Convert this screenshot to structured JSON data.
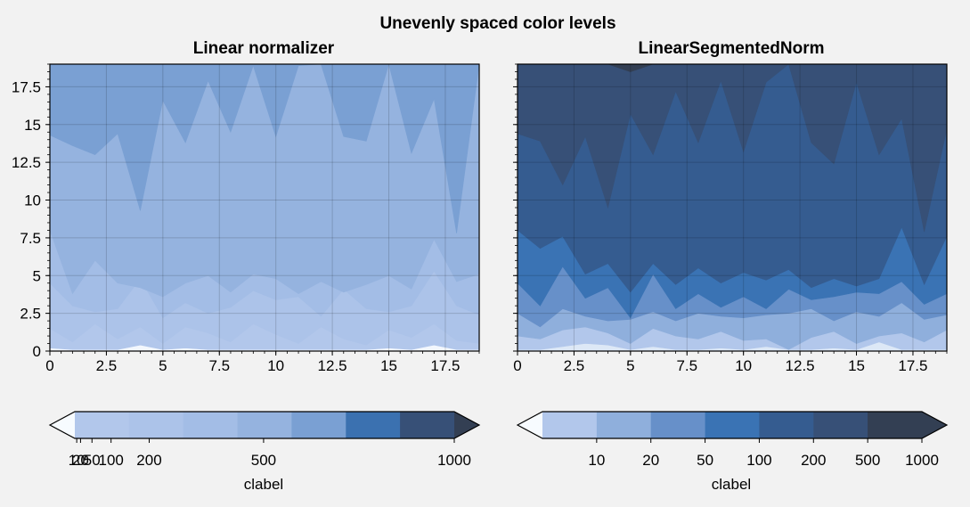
{
  "figure": {
    "suptitle": "Unevenly spaced color levels"
  },
  "chart_data": [
    {
      "type": "heatmap",
      "subtype": "filled-contour",
      "title": "Linear normalizer",
      "xlim": [
        0,
        19
      ],
      "ylim": [
        0,
        19
      ],
      "xticks": [
        "0",
        "2.5",
        "5",
        "7.5",
        "10",
        "12.5",
        "15",
        "17.5"
      ],
      "yticks": [
        "0",
        "2.5",
        "5",
        "7.5",
        "10",
        "12.5",
        "15",
        "17.5"
      ],
      "grid": true,
      "levels": [
        1,
        5,
        10,
        20,
        50,
        100,
        200,
        500,
        1000
      ],
      "normalizer": "linear",
      "colorbar": {
        "label": "clabel",
        "ticklabels": [
          "10",
          "20",
          "50",
          "100",
          "200",
          "500",
          "1000"
        ],
        "colors": [
          "#b2c7eb",
          "#acc3e9",
          "#a3bde6",
          "#95b3df",
          "#7aa0d3",
          "#3b71b0",
          "#375077"
        ],
        "extend": "both",
        "extend_low": "#f7fbff",
        "extend_high": "#333f53",
        "location": "bottom"
      },
      "bands": [
        "#f3f7fd",
        "#b2c7eb",
        "#acc3e9",
        "#a3bde6",
        "#95b3df",
        "#7aa0d3",
        "#3b71b0",
        "#375077"
      ],
      "boundaries": [
        [
          0.2,
          0.1,
          0.1,
          0.1,
          0.4,
          0.1,
          0.2,
          0.1,
          0.1,
          0.1,
          0.1,
          0.1,
          0.1,
          0.1,
          0.1,
          0.2,
          0.1,
          0.4,
          0.1,
          0.1
        ],
        [
          1.5,
          0.6,
          1.8,
          0.8,
          1.6,
          0.5,
          1.6,
          1.2,
          0.6,
          1.8,
          1.1,
          0.5,
          1.6,
          0.8,
          0.4,
          1.4,
          0.9,
          1.8,
          0.7,
          0.5
        ],
        [
          4.5,
          3.0,
          2.6,
          2.8,
          4.8,
          2.2,
          3.2,
          2.5,
          2.9,
          4.0,
          3.4,
          3.6,
          2.3,
          4.1,
          2.8,
          2.6,
          3.0,
          5.3,
          3.0,
          2.4
        ],
        [
          8.0,
          3.8,
          6.0,
          4.5,
          4.2,
          3.6,
          4.5,
          5.0,
          3.9,
          5.1,
          4.8,
          3.8,
          4.6,
          3.9,
          4.4,
          5.0,
          4.1,
          7.4,
          4.6,
          5.1
        ],
        [
          14.3,
          13.6,
          13.0,
          14.4,
          9.3,
          16.6,
          13.8,
          17.9,
          14.5,
          18.9,
          14.2,
          18.9,
          19,
          14.2,
          13.9,
          19,
          13.1,
          16.7,
          7.8,
          19
        ],
        [
          19,
          19,
          19,
          19,
          19,
          19,
          19,
          19,
          19,
          19,
          19,
          19,
          19,
          19,
          19,
          19,
          19,
          19,
          19,
          19
        ]
      ]
    },
    {
      "type": "heatmap",
      "subtype": "filled-contour",
      "title": "LinearSegmentedNorm",
      "xlim": [
        0,
        19
      ],
      "ylim": [
        0,
        19
      ],
      "xticks": [
        "0",
        "2.5",
        "5",
        "7.5",
        "10",
        "12.5",
        "15",
        "17.5"
      ],
      "yticks": [],
      "grid": true,
      "levels": [
        1,
        5,
        10,
        20,
        50,
        100,
        200,
        500,
        1000
      ],
      "normalizer": "segmented",
      "colorbar": {
        "label": "clabel",
        "ticklabels": [
          "10",
          "20",
          "50",
          "100",
          "200",
          "500",
          "1000"
        ],
        "colors": [
          "#b2c7eb",
          "#8fafdc",
          "#6790c9",
          "#3a73b4",
          "#355c90",
          "#375077",
          "#333f53"
        ],
        "extend": "both",
        "extend_low": "#f7fbff",
        "extend_high": "#333f53",
        "location": "bottom"
      },
      "bands": [
        "#dde8f6",
        "#b2c7eb",
        "#8fafdc",
        "#6790c9",
        "#3a73b4",
        "#355c90",
        "#375077",
        "#333f53"
      ],
      "boundaries": [
        [
          0.1,
          0.1,
          0.3,
          0.5,
          0.4,
          0.1,
          0.3,
          0.1,
          0.1,
          0.2,
          0.1,
          0.3,
          0.1,
          0.1,
          0.2,
          0.1,
          0.6,
          0.1,
          0.1,
          0.1
        ],
        [
          1.0,
          0.8,
          1.4,
          1.6,
          1.2,
          0.5,
          1.5,
          1.0,
          0.8,
          1.3,
          0.7,
          0.8,
          0.1,
          0.9,
          1.3,
          0.5,
          1.0,
          1.2,
          0.6,
          1.4
        ],
        [
          2.5,
          1.6,
          2.8,
          2.3,
          2.0,
          2.1,
          2.6,
          2.0,
          2.5,
          2.3,
          2.2,
          2.4,
          2.5,
          2.8,
          2.0,
          2.6,
          2.3,
          3.2,
          2.1,
          2.4
        ],
        [
          4.5,
          3.0,
          5.6,
          3.5,
          4.2,
          2.2,
          5.1,
          2.8,
          3.8,
          2.9,
          3.6,
          2.8,
          4.1,
          3.4,
          3.6,
          3.9,
          3.8,
          4.6,
          3.1,
          3.8
        ],
        [
          8.0,
          6.8,
          7.6,
          5.1,
          5.8,
          3.9,
          5.8,
          4.4,
          5.5,
          4.5,
          5.2,
          4.7,
          5.4,
          4.2,
          4.8,
          4.3,
          4.8,
          8.2,
          4.4,
          7.6
        ],
        [
          14.4,
          13.9,
          11.0,
          14.2,
          9.5,
          15.7,
          13.0,
          17.2,
          13.8,
          17.9,
          13.2,
          17.8,
          19,
          13.8,
          12.4,
          17.8,
          13.0,
          15.4,
          7.9,
          14.7
        ],
        [
          19,
          19,
          19,
          19,
          19,
          18.5,
          19,
          19,
          19,
          19,
          19,
          19,
          19,
          19,
          19,
          19,
          19,
          19,
          19,
          19
        ],
        [
          19,
          19,
          19,
          19,
          19,
          19,
          19,
          19,
          19,
          19,
          19,
          19,
          19,
          19,
          19,
          19,
          19,
          19,
          19,
          19
        ]
      ]
    }
  ]
}
